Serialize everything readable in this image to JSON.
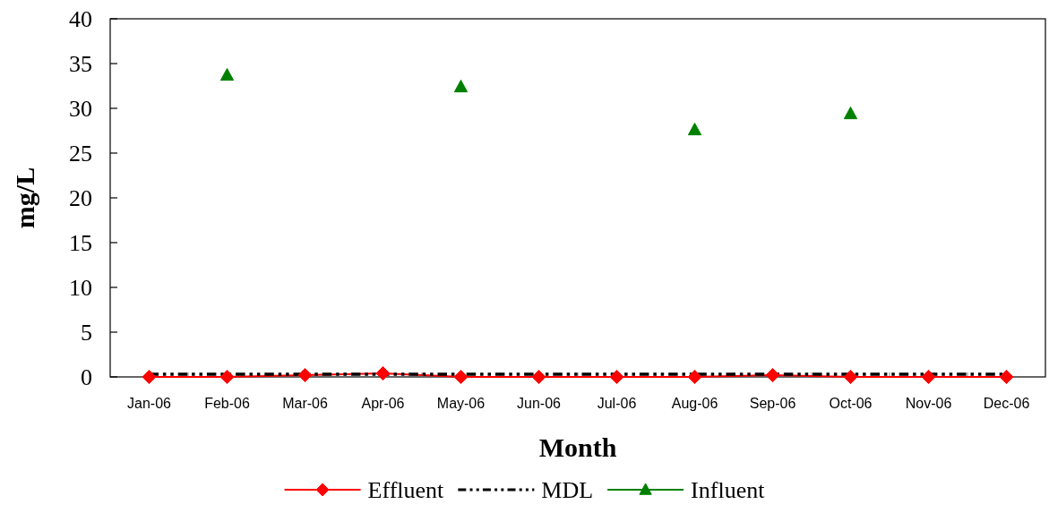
{
  "chart_data": {
    "type": "line",
    "xlabel": "Month",
    "ylabel": "mg/L",
    "legend": "bottom",
    "categories": [
      "Jan-06",
      "Feb-06",
      "Mar-06",
      "Apr-06",
      "May-06",
      "Jun-06",
      "Jul-06",
      "Aug-06",
      "Sep-06",
      "Oct-06",
      "Nov-06",
      "Dec-06"
    ],
    "ylim": [
      0,
      40
    ],
    "yticks": [
      0,
      5,
      10,
      15,
      20,
      25,
      30,
      35,
      40
    ],
    "series": [
      {
        "name": "Effluent",
        "color": "#ff0000",
        "marker": "diamond",
        "line_style": "solid",
        "values": [
          0,
          0,
          0.2,
          0.4,
          0,
          0,
          0,
          0,
          0.2,
          0,
          0,
          0
        ]
      },
      {
        "name": "MDL",
        "color": "#000000",
        "marker": "none",
        "line_style": "dashed",
        "values": [
          0.3,
          0.3,
          0.3,
          0.3,
          0.3,
          0.3,
          0.3,
          0.3,
          0.3,
          0.3,
          0.3,
          0.3
        ]
      },
      {
        "name": "Influent",
        "type": "scatter",
        "color": "#008000",
        "marker": "triangle",
        "line_style": "solid",
        "values": [
          null,
          33.7,
          null,
          null,
          32.4,
          null,
          null,
          27.6,
          null,
          29.4,
          null,
          null
        ]
      }
    ]
  }
}
